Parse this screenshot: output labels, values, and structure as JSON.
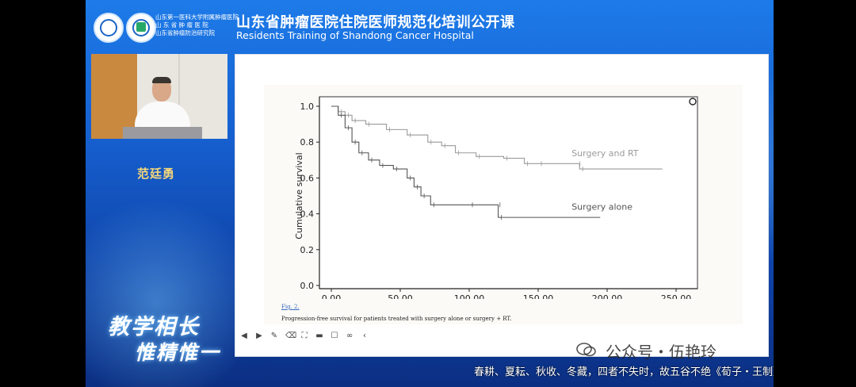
{
  "header": {
    "logo_text_lines": [
      "山东第一医科大学附属肿瘤医院",
      "山 东 省 肿 瘤 医 院",
      "山东省肿瘤防治研究院"
    ],
    "title_cn": "山东省肿瘤医院住院医师规范化培训公开课",
    "title_en": "Residents Training of Shandong Cancer Hospital"
  },
  "speaker": {
    "name": "范廷勇"
  },
  "slogan": {
    "line1": "教学相长",
    "line2": "惟精惟一"
  },
  "slide": {
    "fig_label": "Fig. 2.",
    "caption": "Progression-free survival for patients treated with surgery alone or surgery + RT."
  },
  "subtitle": "春耕、夏耘、秋收、冬藏，四者不失时，故五谷不绝《荀子・王制》",
  "watermark": "公众号・伍艳玲",
  "toolbar_icons": [
    "prev-icon",
    "play-icon",
    "pen-icon",
    "eraser-icon",
    "select-icon",
    "video-icon",
    "comment-icon",
    "link-icon",
    "collapse-icon"
  ],
  "chart_data": {
    "type": "line",
    "xlabel": "(Follow-up (mo)",
    "ylabel": "Cumulative survival",
    "xlim": [
      0,
      250
    ],
    "ylim": [
      0,
      1.0
    ],
    "xticks": [
      "0.00",
      "50.00",
      "100.00",
      "150.00",
      "200.00",
      "250.00"
    ],
    "yticks": [
      "0.0",
      "0.2",
      "0.4",
      "0.6",
      "0.8",
      "1.0"
    ],
    "series": [
      {
        "name": "Surgery and RT",
        "color": "#9a9a9a",
        "points": [
          [
            0,
            1.0
          ],
          [
            5,
            0.97
          ],
          [
            10,
            0.95
          ],
          [
            15,
            0.92
          ],
          [
            25,
            0.9
          ],
          [
            40,
            0.87
          ],
          [
            55,
            0.84
          ],
          [
            70,
            0.8
          ],
          [
            80,
            0.78
          ],
          [
            90,
            0.74
          ],
          [
            105,
            0.72
          ],
          [
            125,
            0.71
          ],
          [
            140,
            0.68
          ],
          [
            150,
            0.68
          ],
          [
            178,
            0.68
          ],
          [
            180,
            0.65
          ],
          [
            240,
            0.65
          ]
        ]
      },
      {
        "name": "Surgery alone",
        "color": "#555555",
        "points": [
          [
            0,
            1.0
          ],
          [
            5,
            0.95
          ],
          [
            10,
            0.88
          ],
          [
            15,
            0.8
          ],
          [
            20,
            0.74
          ],
          [
            27,
            0.7
          ],
          [
            35,
            0.67
          ],
          [
            45,
            0.65
          ],
          [
            55,
            0.6
          ],
          [
            60,
            0.55
          ],
          [
            65,
            0.5
          ],
          [
            72,
            0.45
          ],
          [
            100,
            0.45
          ],
          [
            120,
            0.45
          ],
          [
            121,
            0.38
          ],
          [
            195,
            0.38
          ]
        ]
      }
    ]
  }
}
